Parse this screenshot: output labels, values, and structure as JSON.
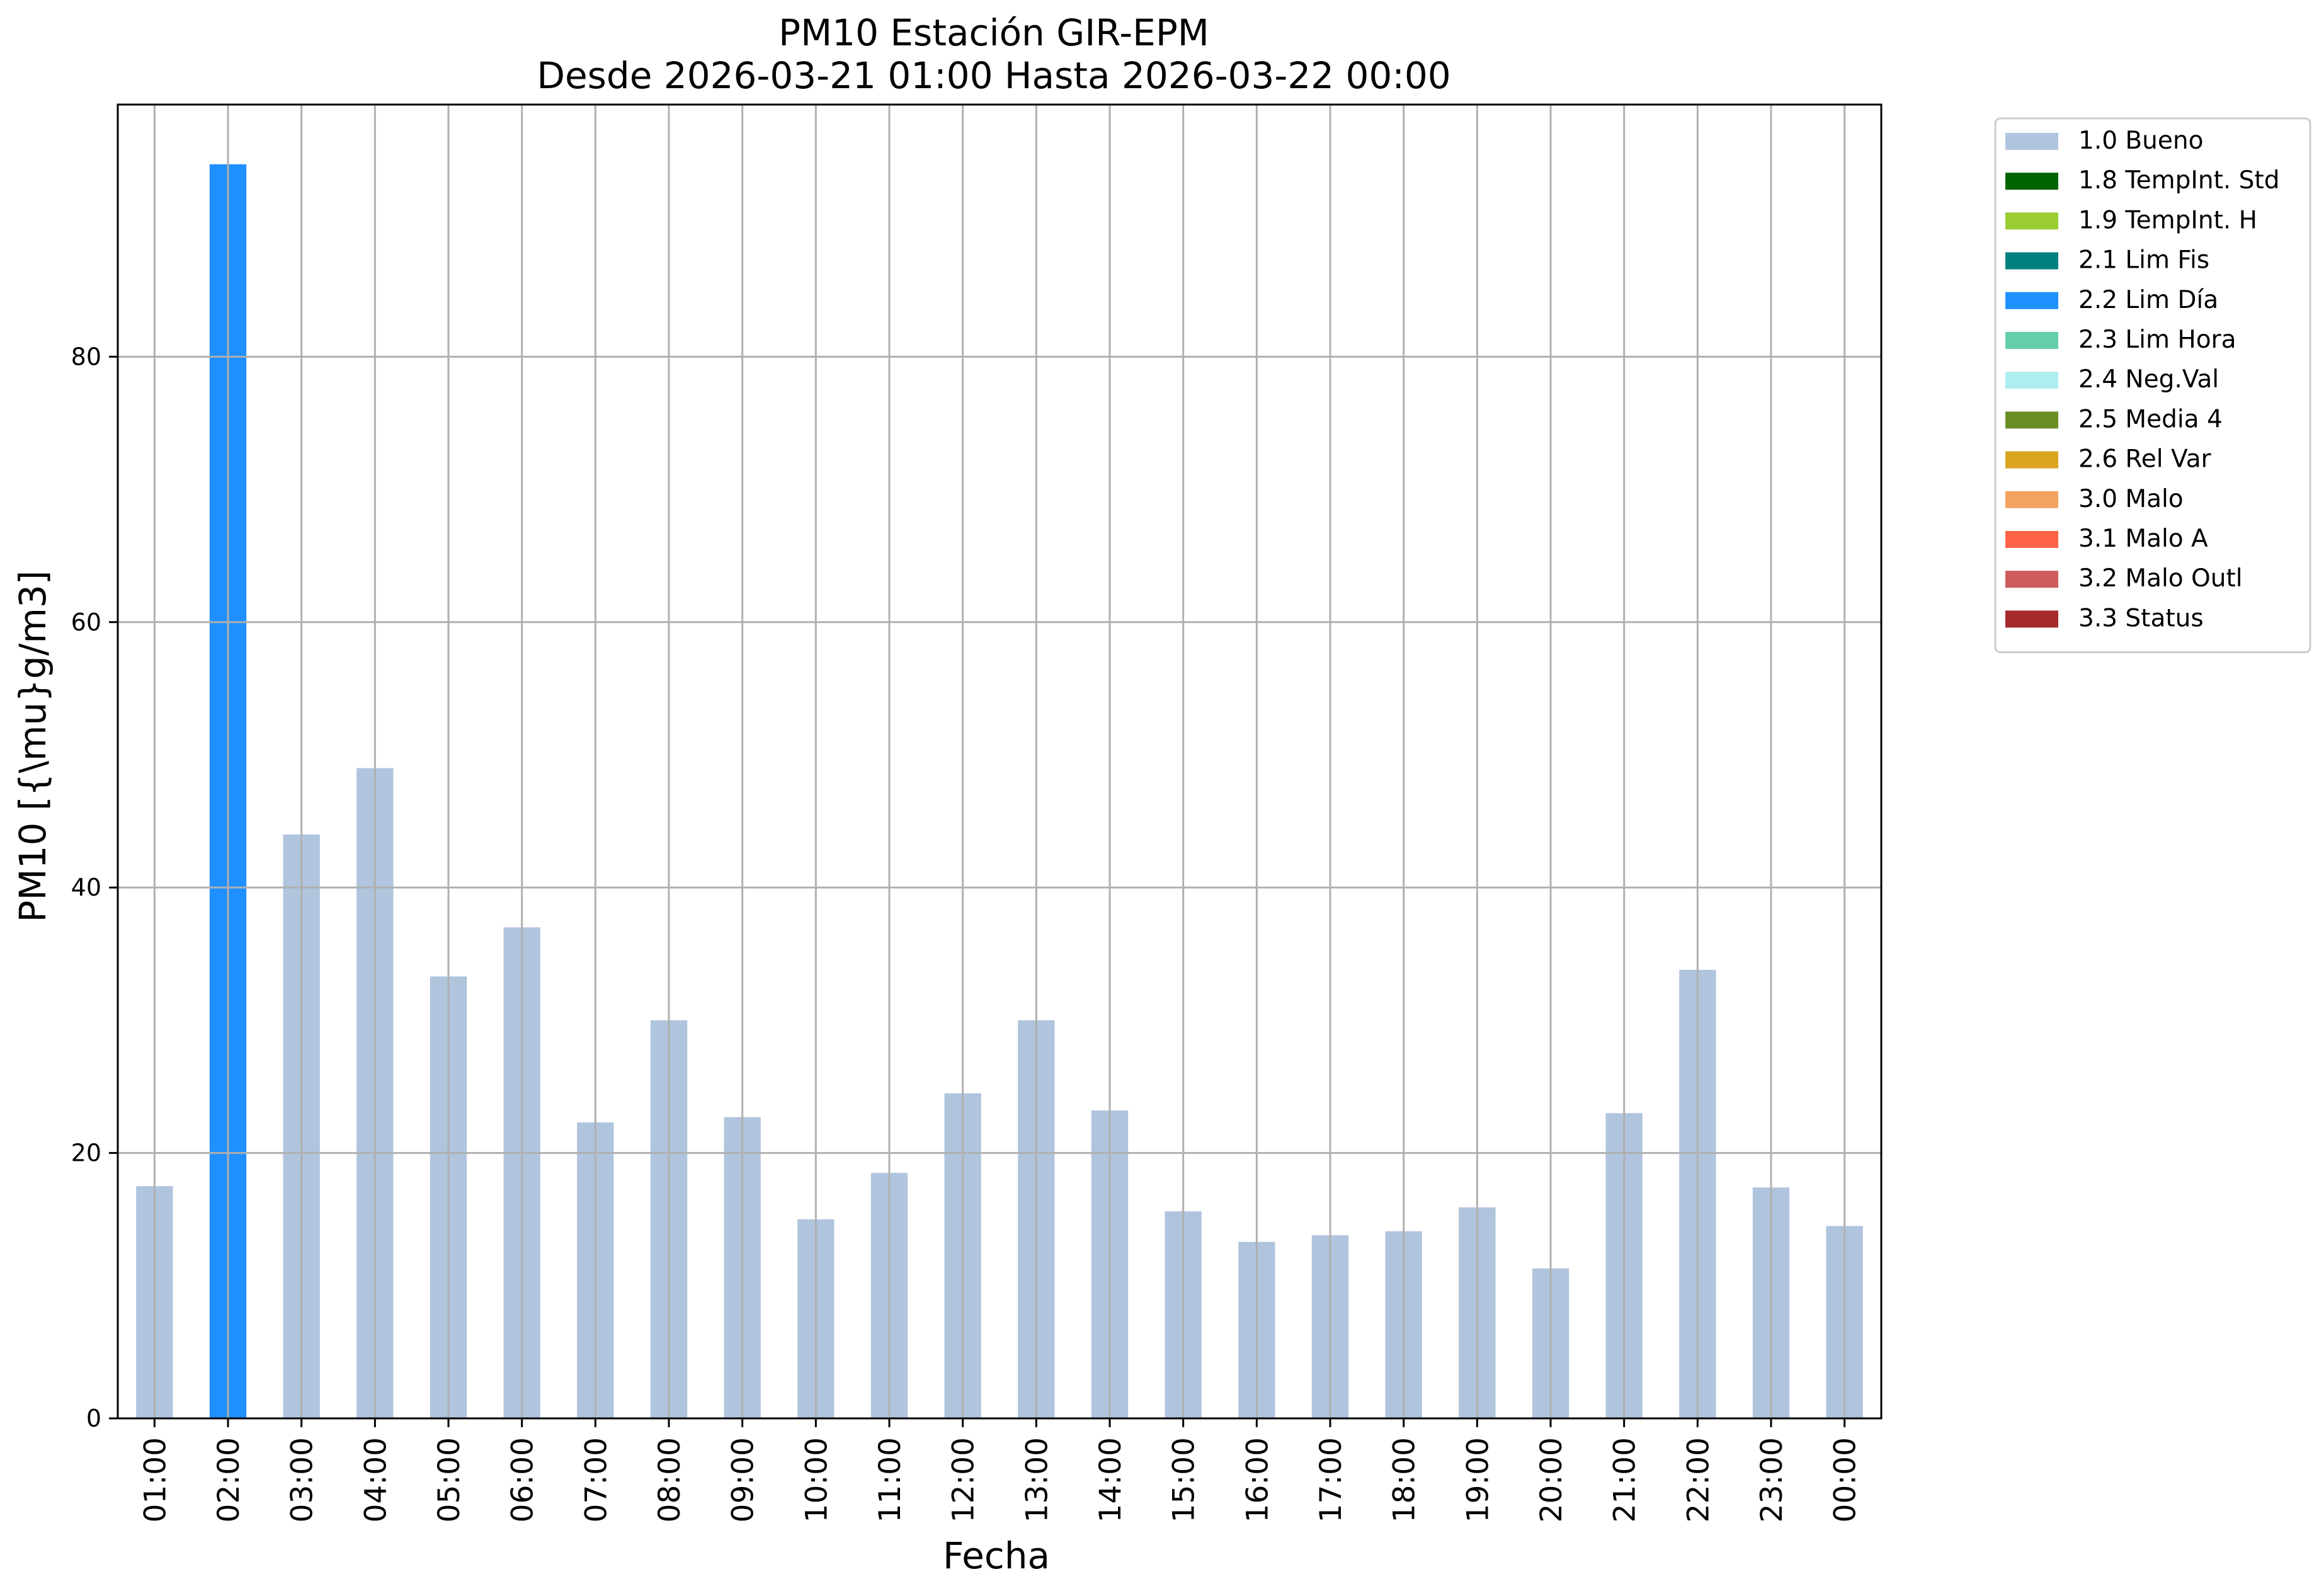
{
  "chart_data": {
    "type": "bar",
    "title": "PM10 Estación GIR-EPM",
    "subtitle": "Desde 2026-03-21 01:00 Hasta 2026-03-22 00:00",
    "xlabel": "Fecha",
    "ylabel": "PM10 [{\\mu}g/m3]",
    "ylim": [
      0,
      99
    ],
    "yticks": [
      0,
      20,
      40,
      60,
      80
    ],
    "grid": true,
    "legend_position": "outside-top-right",
    "categories": [
      "01:00",
      "02:00",
      "03:00",
      "04:00",
      "05:00",
      "06:00",
      "07:00",
      "08:00",
      "09:00",
      "10:00",
      "11:00",
      "12:00",
      "13:00",
      "14:00",
      "15:00",
      "16:00",
      "17:00",
      "18:00",
      "19:00",
      "20:00",
      "21:00",
      "22:00",
      "23:00",
      "00:00"
    ],
    "values": [
      17.5,
      94.5,
      44.0,
      49.0,
      33.3,
      37.0,
      22.3,
      30.0,
      22.7,
      15.0,
      18.5,
      24.5,
      30.0,
      23.2,
      15.6,
      13.3,
      13.8,
      14.1,
      15.9,
      11.3,
      23.0,
      33.8,
      17.4,
      14.5
    ],
    "flags": [
      "1.0",
      "2.2",
      "1.0",
      "1.0",
      "1.0",
      "1.0",
      "1.0",
      "1.0",
      "1.0",
      "1.0",
      "1.0",
      "1.0",
      "1.0",
      "1.0",
      "1.0",
      "1.0",
      "1.0",
      "1.0",
      "1.0",
      "1.0",
      "1.0",
      "1.0",
      "1.0",
      "1.0"
    ],
    "legend": [
      {
        "code": "1.0",
        "label": "1.0 Bueno",
        "color": "#b0c4de"
      },
      {
        "code": "1.8",
        "label": "1.8 TempInt. Std",
        "color": "#006400"
      },
      {
        "code": "1.9",
        "label": "1.9 TempInt. H",
        "color": "#9acd32"
      },
      {
        "code": "2.1",
        "label": "2.1 Lim Fis",
        "color": "#008080"
      },
      {
        "code": "2.2",
        "label": "2.2 Lim Día",
        "color": "#1e90ff"
      },
      {
        "code": "2.3",
        "label": "2.3 Lim Hora",
        "color": "#66cdaa"
      },
      {
        "code": "2.4",
        "label": "2.4 Neg.Val",
        "color": "#afeeee"
      },
      {
        "code": "2.5",
        "label": "2.5 Media 4",
        "color": "#6b8e23"
      },
      {
        "code": "2.6",
        "label": "2.6 Rel Var",
        "color": "#daa520"
      },
      {
        "code": "3.0",
        "label": "3.0 Malo",
        "color": "#f4a460"
      },
      {
        "code": "3.1",
        "label": "3.1 Malo A",
        "color": "#ff6347"
      },
      {
        "code": "3.2",
        "label": "3.2 Malo Outl",
        "color": "#cd5c5c"
      },
      {
        "code": "3.3",
        "label": "3.3 Status",
        "color": "#a52a2a"
      }
    ]
  }
}
